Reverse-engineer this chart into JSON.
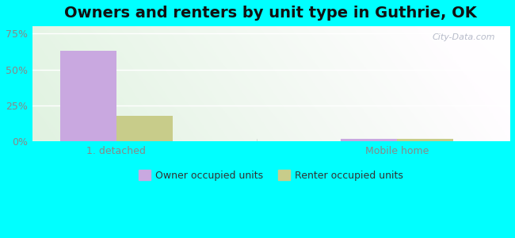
{
  "title": "Owners and renters by unit type in Guthrie, OK",
  "categories": [
    "1. detached",
    "Mobile home"
  ],
  "owner_values": [
    63,
    2
  ],
  "renter_values": [
    18,
    2
  ],
  "owner_color": "#c9a8e0",
  "renter_color": "#c8cc8a",
  "yticks": [
    0,
    25,
    50,
    75
  ],
  "ytick_labels": [
    "0%",
    "25%",
    "50%",
    "75%"
  ],
  "ylim": [
    0,
    80
  ],
  "outer_bg": "#00ffff",
  "watermark": "City-Data.com",
  "legend_owner": "Owner occupied units",
  "legend_renter": "Renter occupied units",
  "bar_width": 0.4,
  "title_fontsize": 14,
  "tick_fontsize": 9,
  "legend_fontsize": 9,
  "x_positions": [
    0.5,
    2.5
  ],
  "xlim": [
    -0.1,
    3.3
  ]
}
